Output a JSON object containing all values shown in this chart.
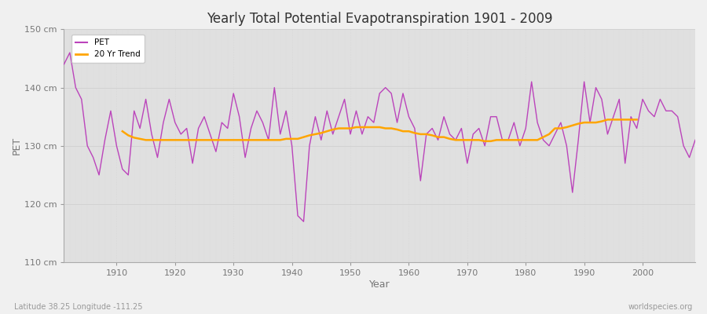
{
  "title": "Yearly Total Potential Evapotranspiration 1901 - 2009",
  "xlabel": "Year",
  "ylabel": "PET",
  "subtitle_left": "Latitude 38.25 Longitude -111.25",
  "subtitle_right": "worldspecies.org",
  "pet_color": "#BB44BB",
  "trend_color": "#FFA500",
  "background_color": "#F0F0F0",
  "plot_bg_color": "#E0E0E0",
  "ylim": [
    110,
    150
  ],
  "yticks": [
    110,
    120,
    130,
    140,
    150
  ],
  "ytick_labels": [
    "110 cm",
    "120 cm",
    "130 cm",
    "140 cm",
    "150 cm"
  ],
  "xlim": [
    1901,
    2009
  ],
  "xticks": [
    1910,
    1920,
    1930,
    1940,
    1950,
    1960,
    1970,
    1980,
    1990,
    2000
  ],
  "years": [
    1901,
    1902,
    1903,
    1904,
    1905,
    1906,
    1907,
    1908,
    1909,
    1910,
    1911,
    1912,
    1913,
    1914,
    1915,
    1916,
    1917,
    1918,
    1919,
    1920,
    1921,
    1922,
    1923,
    1924,
    1925,
    1926,
    1927,
    1928,
    1929,
    1930,
    1931,
    1932,
    1933,
    1934,
    1935,
    1936,
    1937,
    1938,
    1939,
    1940,
    1941,
    1942,
    1943,
    1944,
    1945,
    1946,
    1947,
    1948,
    1949,
    1950,
    1951,
    1952,
    1953,
    1954,
    1955,
    1956,
    1957,
    1958,
    1959,
    1960,
    1961,
    1962,
    1963,
    1964,
    1965,
    1966,
    1967,
    1968,
    1969,
    1970,
    1971,
    1972,
    1973,
    1974,
    1975,
    1976,
    1977,
    1978,
    1979,
    1980,
    1981,
    1982,
    1983,
    1984,
    1985,
    1986,
    1987,
    1988,
    1989,
    1990,
    1991,
    1992,
    1993,
    1994,
    1995,
    1996,
    1997,
    1998,
    1999,
    2000,
    2001,
    2002,
    2003,
    2004,
    2005,
    2006,
    2007,
    2008,
    2009
  ],
  "pet_values": [
    144,
    146,
    140,
    138,
    130,
    128,
    125,
    131,
    136,
    130,
    126,
    125,
    136,
    133,
    138,
    132,
    128,
    134,
    138,
    134,
    132,
    133,
    127,
    133,
    135,
    132,
    129,
    134,
    133,
    139,
    135,
    128,
    133,
    136,
    134,
    131,
    140,
    132,
    136,
    130,
    118,
    117,
    130,
    135,
    131,
    136,
    132,
    135,
    138,
    132,
    136,
    132,
    135,
    134,
    139,
    140,
    139,
    134,
    139,
    135,
    133,
    124,
    132,
    133,
    131,
    135,
    132,
    131,
    133,
    127,
    132,
    133,
    130,
    135,
    135,
    131,
    131,
    134,
    130,
    133,
    141,
    134,
    131,
    130,
    132,
    134,
    130,
    122,
    131,
    141,
    134,
    140,
    138,
    132,
    135,
    138,
    127,
    135,
    133,
    138,
    136,
    135,
    138,
    136,
    136,
    135,
    130,
    128,
    131
  ],
  "trend_values": [
    null,
    null,
    null,
    null,
    null,
    null,
    null,
    null,
    null,
    null,
    132.5,
    131.8,
    131.4,
    131.2,
    131.0,
    131.0,
    131.0,
    131.0,
    131.0,
    131.0,
    131.0,
    131.0,
    131.0,
    131.0,
    131.0,
    131.0,
    131.0,
    131.0,
    131.0,
    131.0,
    131.0,
    131.0,
    131.0,
    131.0,
    131.0,
    131.0,
    131.0,
    131.0,
    131.2,
    131.2,
    131.2,
    131.5,
    131.8,
    132.0,
    132.2,
    132.5,
    132.8,
    133.0,
    133.0,
    133.0,
    133.2,
    133.2,
    133.2,
    133.2,
    133.2,
    133.0,
    133.0,
    132.8,
    132.5,
    132.5,
    132.2,
    132.0,
    132.0,
    131.8,
    131.5,
    131.5,
    131.2,
    131.0,
    131.0,
    131.0,
    131.0,
    131.0,
    130.8,
    130.8,
    131.0,
    131.0,
    131.0,
    131.0,
    131.0,
    131.0,
    131.0,
    131.0,
    131.5,
    132.0,
    133.0,
    133.0,
    133.2,
    133.5,
    133.8,
    134.0,
    134.0,
    134.0,
    134.2,
    134.5,
    134.5,
    134.5,
    134.5,
    134.5,
    134.5,
    null
  ]
}
